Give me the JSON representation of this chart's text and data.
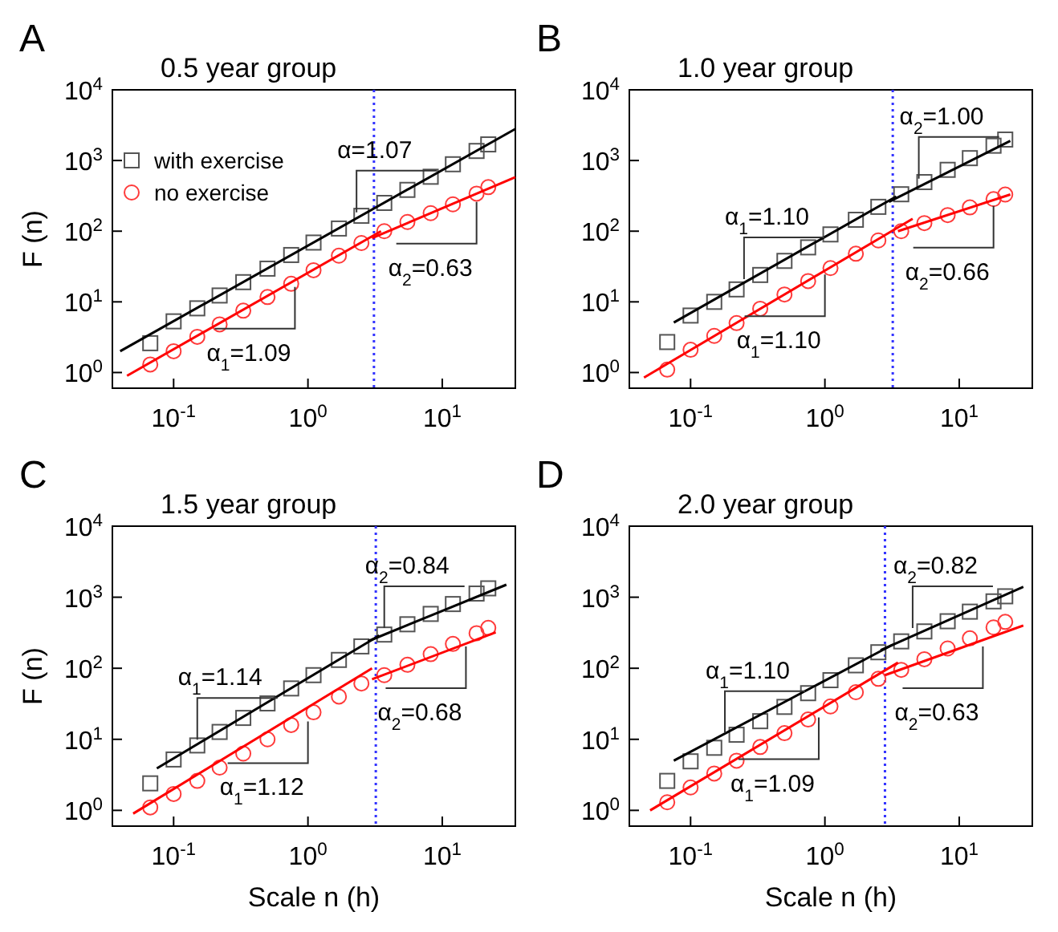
{
  "chart_data": [
    {
      "type": "scatter",
      "title": "0.5 year group",
      "ylabel": "F (n)",
      "log": "xy",
      "legend": "top left",
      "xlim": [
        0.035,
        35
      ],
      "ylim": [
        0.6,
        10000
      ],
      "xticks": [
        {
          "value": 0.1,
          "label": "10$^{-1}$"
        },
        {
          "value": 1,
          "label": "10$^{0}$"
        },
        {
          "value": 10,
          "label": "10$^{1}$"
        }
      ],
      "yticks": [
        {
          "value": 1,
          "label": "10$^{0}$"
        },
        {
          "value": 10,
          "label": "10$^{1}$"
        },
        {
          "value": 100,
          "label": "10$^{2}$"
        },
        {
          "value": 1000,
          "label": "10$^{3}$"
        },
        {
          "value": 10000,
          "label": "10$^{4}$"
        }
      ],
      "x": [
        0.067,
        0.1,
        0.15,
        0.22,
        0.33,
        0.5,
        0.75,
        1.1,
        1.7,
        2.5,
        3.7,
        5.5,
        8.2,
        12,
        18,
        22
      ],
      "series": [
        {
          "name": "with exercise",
          "color": "#555555",
          "marker": "square",
          "values": [
            2.6,
            5.3,
            8.1,
            12.3,
            19,
            29.5,
            46,
            69,
            109,
            165,
            251,
            384,
            589,
            885,
            1365,
            1690
          ]
        },
        {
          "name": "no exercise",
          "color": "#ff3b3b",
          "marker": "circle",
          "values": [
            1.3,
            2.0,
            3.2,
            4.8,
            7.5,
            11.7,
            18,
            28,
            45,
            68,
            100,
            135,
            180,
            240,
            340,
            420
          ]
        },
        {
          "type": "line",
          "color": "#000000",
          "marker": "none",
          "x": [
            0.04,
            35
          ],
          "values": [
            2.0,
            2800
          ]
        },
        {
          "type": "line",
          "color": "#ff0000",
          "x": [
            0.045,
            3.5
          ],
          "values": [
            0.9,
            100
          ]
        },
        {
          "type": "line",
          "color": "#ff0000",
          "x": [
            3,
            35
          ],
          "values": [
            80,
            580
          ]
        }
      ],
      "ref_lines": [
        {
          "axis": "x",
          "value": 3.1,
          "color": "#3333ff",
          "line_style": "dotted"
        }
      ],
      "annotations": [
        "A",
        {
          "text": "α=1.07",
          "x": 2.3,
          "y": 150
        },
        {
          "text": "α$_{1}$=1.09",
          "x": 0.8,
          "y": 20
        },
        {
          "text": "α$_{2}$=0.63",
          "x": 18,
          "y": 320
        }
      ]
    },
    {
      "type": "scatter",
      "title": "1.0 year group",
      "log": "xy",
      "xlim": [
        0.035,
        35
      ],
      "ylim": [
        0.6,
        10000
      ],
      "xticks": [
        {
          "value": 0.1,
          "label": "10$^{-1}$"
        },
        {
          "value": 1,
          "label": "10$^{0}$"
        },
        {
          "value": 10,
          "label": "10$^{1}$"
        }
      ],
      "yticks": [
        {
          "value": 1,
          "label": "10$^{0}$"
        },
        {
          "value": 10,
          "label": "10$^{1}$"
        },
        {
          "value": 100,
          "label": "10$^{2}$"
        },
        {
          "value": 1000,
          "label": "10$^{3}$"
        },
        {
          "value": 10000,
          "label": "10$^{4}$"
        }
      ],
      "x": [
        0.067,
        0.1,
        0.15,
        0.22,
        0.33,
        0.5,
        0.75,
        1.1,
        1.7,
        2.5,
        3.7,
        5.5,
        8.2,
        12,
        18,
        22
      ],
      "series": [
        {
          "color": "#555555",
          "marker": "square",
          "values": [
            2.7,
            6.4,
            10,
            15,
            24,
            38,
            59,
            90,
            145,
            221,
            333,
            495,
            738,
            1080,
            1620,
            1980
          ]
        },
        {
          "color": "#ff3b3b",
          "marker": "circle",
          "values": [
            1.1,
            2.1,
            3.3,
            5,
            8,
            12.7,
            19.7,
            30,
            48,
            74,
            100,
            130,
            169,
            217,
            284,
            330
          ]
        },
        {
          "type": "line",
          "color": "#000000",
          "x": [
            0.075,
            3.4
          ],
          "values": [
            5.1,
            310
          ]
        },
        {
          "type": "line",
          "color": "#000000",
          "x": [
            3,
            24
          ],
          "values": [
            260,
            1900
          ]
        },
        {
          "type": "line",
          "color": "#ff0000",
          "x": [
            0.045,
            4.5
          ],
          "values": [
            0.85,
            150
          ]
        },
        {
          "type": "line",
          "color": "#ff0000",
          "x": [
            3.5,
            24
          ],
          "values": [
            100,
            330
          ]
        }
      ],
      "ref_lines": [
        {
          "axis": "x",
          "value": 3.2,
          "color": "#3333ff",
          "line_style": "dotted"
        }
      ],
      "annotations": [
        "B",
        {
          "text": "α$_{1}$=1.10",
          "x": 0.25,
          "y": 17
        },
        {
          "text": "α$_{2}$=1.00",
          "x": 5,
          "y": 450
        },
        {
          "text": "α$_{1}$=1.10",
          "x": 1.0,
          "y": 30
        },
        {
          "text": "α$_{2}$=0.66",
          "x": 18,
          "y": 280
        }
      ]
    },
    {
      "type": "scatter",
      "title": "1.5 year group",
      "xlabel": "Scale n (h)",
      "ylabel": "F (n)",
      "log": "xy",
      "xlim": [
        0.035,
        35
      ],
      "ylim": [
        0.6,
        10000
      ],
      "xticks": [
        {
          "value": 0.1,
          "label": "10$^{-1}$"
        },
        {
          "value": 1,
          "label": "10$^{0}$"
        },
        {
          "value": 10,
          "label": "10$^{1}$"
        }
      ],
      "yticks": [
        {
          "value": 1,
          "label": "10$^{0}$"
        },
        {
          "value": 10,
          "label": "10$^{1}$"
        },
        {
          "value": 100,
          "label": "10$^{2}$"
        },
        {
          "value": 1000,
          "label": "10$^{3}$"
        },
        {
          "value": 10000,
          "label": "10$^{4}$"
        }
      ],
      "x": [
        0.067,
        0.1,
        0.15,
        0.22,
        0.33,
        0.5,
        0.75,
        1.1,
        1.7,
        2.5,
        3.7,
        5.5,
        8.2,
        12,
        18,
        22
      ],
      "series": [
        {
          "color": "#555555",
          "marker": "square",
          "values": [
            2.4,
            5.2,
            8.2,
            12.7,
            20,
            32,
            52,
            80,
            131,
            203,
            298,
            416,
            582,
            801,
            1126,
            1333
          ]
        },
        {
          "color": "#ff3b3b",
          "marker": "circle",
          "values": [
            1.1,
            1.7,
            2.6,
            4.0,
            6.3,
            10,
            15.9,
            24,
            40,
            61,
            80,
            112,
            158,
            220,
            312,
            370
          ]
        },
        {
          "type": "line",
          "color": "#000000",
          "x": [
            0.075,
            3.4
          ],
          "values": [
            3.9,
            290
          ]
        },
        {
          "type": "line",
          "color": "#000000",
          "x": [
            2.8,
            30
          ],
          "values": [
            240,
            1500
          ]
        },
        {
          "type": "line",
          "color": "#ff0000",
          "x": [
            0.05,
            3
          ],
          "values": [
            0.9,
            100
          ]
        },
        {
          "type": "line",
          "color": "#ff0000",
          "x": [
            3,
            25
          ],
          "values": [
            70,
            320
          ]
        }
      ],
      "ref_lines": [
        {
          "axis": "x",
          "value": 3.2,
          "color": "#3333ff",
          "line_style": "dotted"
        }
      ],
      "annotations": [
        "C",
        {
          "text": "α$_{1}$=1.14",
          "x": 0.15,
          "y": 8
        },
        {
          "text": "α$_{2}$=0.84",
          "x": 3.7,
          "y": 300
        },
        {
          "text": "α$_{1}$=1.12",
          "x": 1.0,
          "y": 22
        },
        {
          "text": "α$_{2}$=0.68",
          "x": 15,
          "y": 250
        }
      ]
    },
    {
      "type": "scatter",
      "title": "2.0 year group",
      "xlabel": "Scale n (h)",
      "log": "xy",
      "xlim": [
        0.035,
        35
      ],
      "ylim": [
        0.6,
        10000
      ],
      "xticks": [
        {
          "value": 0.1,
          "label": "10$^{-1}$"
        },
        {
          "value": 1,
          "label": "10$^{0}$"
        },
        {
          "value": 10,
          "label": "10$^{1}$"
        }
      ],
      "yticks": [
        {
          "value": 1,
          "label": "10$^{0}$"
        },
        {
          "value": 10,
          "label": "10$^{1}$"
        },
        {
          "value": 100,
          "label": "10$^{2}$"
        },
        {
          "value": 1000,
          "label": "10$^{3}$"
        },
        {
          "value": 10000,
          "label": "10$^{4}$"
        }
      ],
      "x": [
        0.067,
        0.1,
        0.15,
        0.22,
        0.33,
        0.5,
        0.75,
        1.1,
        1.7,
        2.5,
        3.7,
        5.5,
        8.2,
        12,
        18,
        22
      ],
      "series": [
        {
          "color": "#555555",
          "marker": "square",
          "values": [
            2.6,
            4.9,
            7.6,
            11.6,
            18,
            28.6,
            44.6,
            68,
            110,
            168,
            239,
            330,
            459,
            626,
            874,
            1030
          ]
        },
        {
          "color": "#ff3b3b",
          "marker": "circle",
          "values": [
            1.3,
            2.1,
            3.3,
            5.0,
            7.8,
            12.2,
            19,
            29,
            46,
            71,
            95,
            134,
            190,
            264,
            376,
            450
          ]
        },
        {
          "type": "line",
          "color": "#000000",
          "x": [
            0.075,
            3.2
          ],
          "values": [
            5.0,
            215
          ]
        },
        {
          "type": "line",
          "color": "#000000",
          "x": [
            2.6,
            30
          ],
          "values": [
            180,
            1400
          ]
        },
        {
          "type": "line",
          "color": "#ff0000",
          "x": [
            0.05,
            3.5
          ],
          "values": [
            1,
            120
          ]
        },
        {
          "type": "line",
          "color": "#ff0000",
          "x": [
            2.8,
            30
          ],
          "values": [
            80,
            400
          ]
        }
      ],
      "ref_lines": [
        {
          "axis": "x",
          "value": 2.8,
          "color": "#3333ff",
          "line_style": "dotted"
        }
      ],
      "annotations": [
        "D",
        {
          "text": "α$_{1}$=1.10",
          "x": 0.18,
          "y": 10
        },
        {
          "text": "α$_{2}$=0.82",
          "x": 4.5,
          "y": 300
        },
        {
          "text": "α$_{1}$=1.09",
          "x": 0.9,
          "y": 25
        },
        {
          "text": "α$_{2}$=0.63",
          "x": 15,
          "y": 250
        }
      ]
    }
  ]
}
